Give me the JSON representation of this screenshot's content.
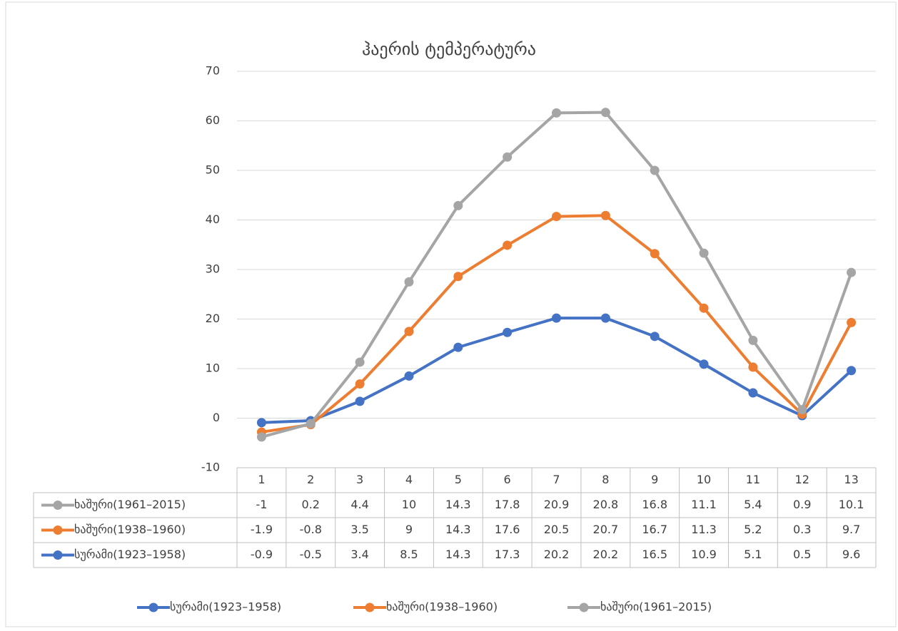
{
  "chart_data": {
    "type": "stacked_line",
    "title": "ჰაერის ტემპერატურა",
    "categories": [
      "1",
      "2",
      "3",
      "4",
      "5",
      "6",
      "7",
      "8",
      "9",
      "10",
      "11",
      "12",
      "13"
    ],
    "series": [
      {
        "name": "სურამი(1923–1958)",
        "color": "#4472c4",
        "values": [
          -0.9,
          -0.5,
          3.4,
          8.5,
          14.3,
          17.3,
          20.2,
          20.2,
          16.5,
          10.9,
          5.1,
          0.5,
          9.6
        ]
      },
      {
        "name": "ხაშური(1938–1960)",
        "color": "#ed7d31",
        "values": [
          -1.9,
          -0.8,
          3.5,
          9,
          14.3,
          17.6,
          20.5,
          20.7,
          16.7,
          11.3,
          5.2,
          0.3,
          9.7
        ]
      },
      {
        "name": "ხაშური(1961–2015)",
        "color": "#a5a5a5",
        "values": [
          -1,
          0.2,
          4.4,
          10,
          14.3,
          17.8,
          20.9,
          20.8,
          16.8,
          11.1,
          5.4,
          0.9,
          10.1
        ]
      }
    ],
    "ylim": [
      -10,
      70
    ],
    "yticks": [
      -10,
      0,
      10,
      20,
      30,
      40,
      50,
      60,
      70
    ],
    "grid": true,
    "legend": "bottom",
    "data_table": true
  }
}
